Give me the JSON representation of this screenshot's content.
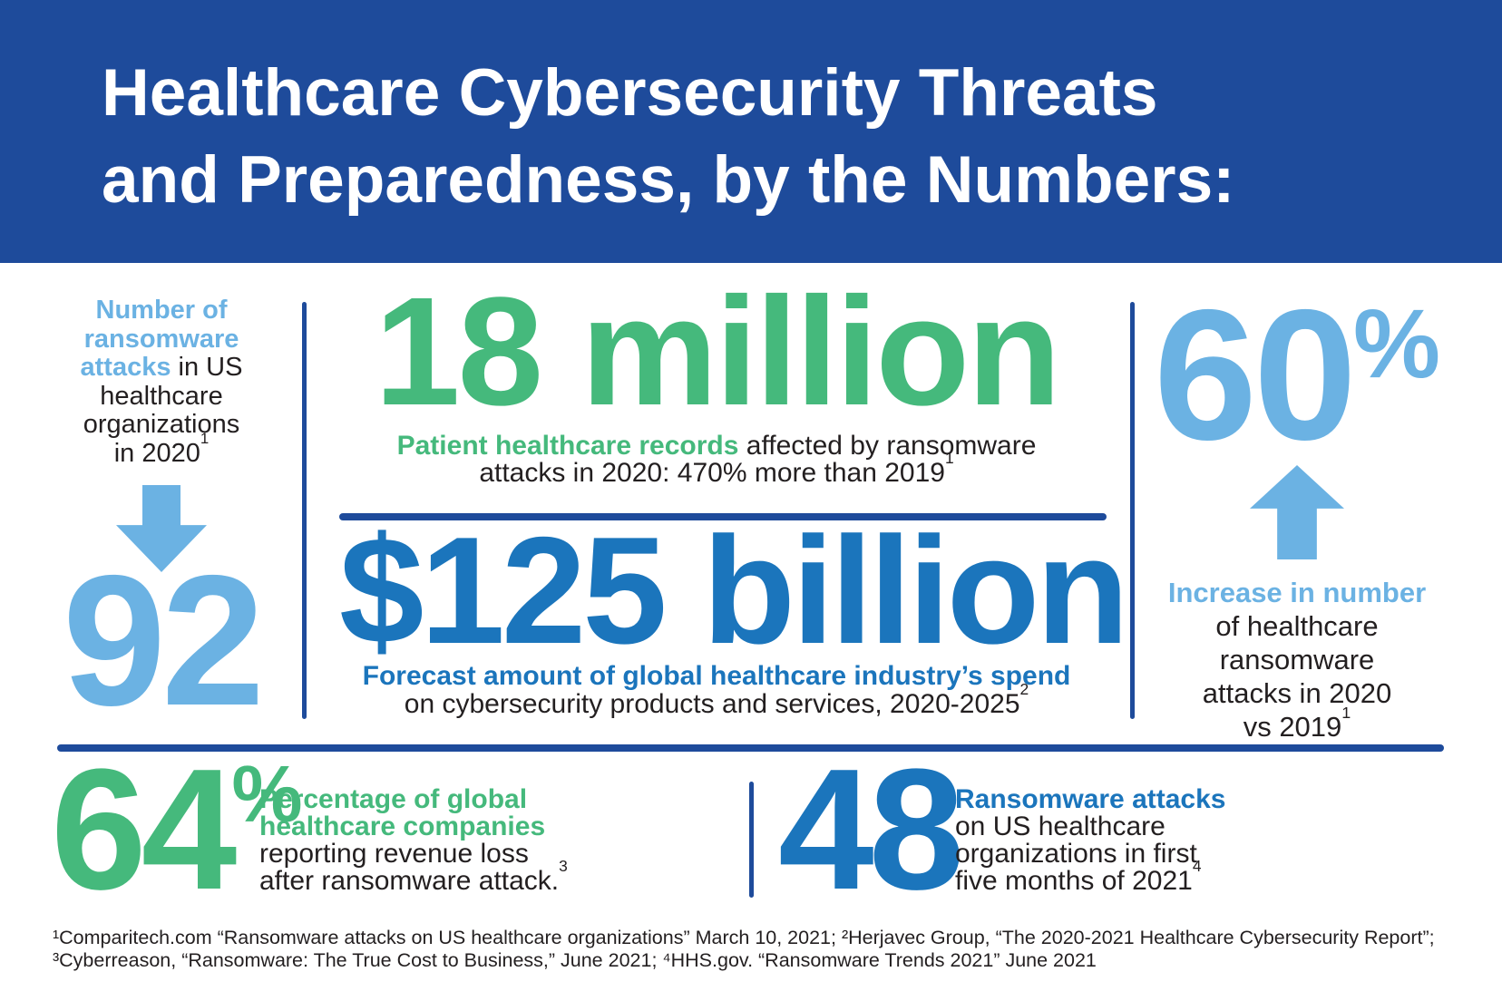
{
  "colors": {
    "navy": "#1E4B9B",
    "light_blue": "#6BB2E3",
    "green": "#45B97C",
    "blue": "#1B75BC",
    "text": "#231F20",
    "background": "#FFFFFF"
  },
  "header": {
    "title_line1": "Healthcare Cybersecurity Threats",
    "title_line2": "and Preparedness, by the Numbers:"
  },
  "icons": {
    "down_arrow": "down-arrow indicating decrease to value below",
    "up_arrow": "up-arrow indicating increase"
  },
  "sections": {
    "attacks_2020": {
      "highlight": "Number of ransomware attacks",
      "rest": " in US healthcare organizations in 2020",
      "sup": "1"
    },
    "records": {
      "highlight": "Patient healthcare records",
      "rest": " affected by ransomware attacks in 2020: 470% more than 2019",
      "sup": "1"
    },
    "spend": {
      "highlight": "Forecast amount of global healthcare industry’s spend",
      "rest": "on cybersecurity products and services, 2020-2025",
      "sup": "2"
    },
    "increase": {
      "highlight": "Increase in number",
      "rest": "of healthcare ransomware attacks in 2020 vs 2019",
      "sup": "1"
    },
    "revenue_loss": {
      "highlight": "Percentage of global healthcare companies",
      "rest": "reporting revenue loss after ransomware attack.",
      "sup": "3"
    },
    "attacks_2021": {
      "highlight": "Ransomware attacks",
      "rest": "on US healthcare organizations in first five months of 2021",
      "sup": "4"
    }
  },
  "chart_data": {
    "type": "table",
    "title": "Healthcare Cybersecurity Threats and Preparedness, by the Numbers:",
    "stats": [
      {
        "display": "92",
        "value": 92,
        "unit": "",
        "label": "Number of ransomware attacks in US healthcare organizations in 2020",
        "footnote": "1",
        "color": "#6BB2E3"
      },
      {
        "display": "18 million",
        "value": 18000000,
        "unit": "records",
        "label": "Patient healthcare records affected by ransomware attacks in 2020: 470% more than 2019",
        "footnote": "1",
        "color": "#45B97C"
      },
      {
        "display": "$125 billion",
        "value": 125000000000,
        "unit": "USD",
        "label": "Forecast amount of global healthcare industry’s spend on cybersecurity products and services, 2020-2025",
        "footnote": "2",
        "color": "#1B75BC"
      },
      {
        "display": "60",
        "value": 60,
        "unit": "%",
        "label": "Increase in number of healthcare ransomware attacks in 2020 vs 2019",
        "footnote": "1",
        "color": "#6BB2E3"
      },
      {
        "display": "64",
        "value": 64,
        "unit": "%",
        "label": "Percentage of global healthcare companies reporting revenue loss after ransomware attack.",
        "footnote": "3",
        "color": "#45B97C"
      },
      {
        "display": "48",
        "value": 48,
        "unit": "",
        "label": "Ransomware attacks on US healthcare organizations in first five months of 2021",
        "footnote": "4",
        "color": "#1B75BC"
      }
    ]
  },
  "footnotes": {
    "line1": "¹Comparitech.com “Ransomware attacks on US healthcare organizations” March 10, 2021; ²Herjavec Group, “The 2020-2021 Healthcare Cybersecurity Report”; ",
    "line2": "³Cyberreason, “Ransomware: The True Cost to Business,” June 2021; ⁴HHS.gov. “Ransomware Trends 2021” June 2021"
  }
}
